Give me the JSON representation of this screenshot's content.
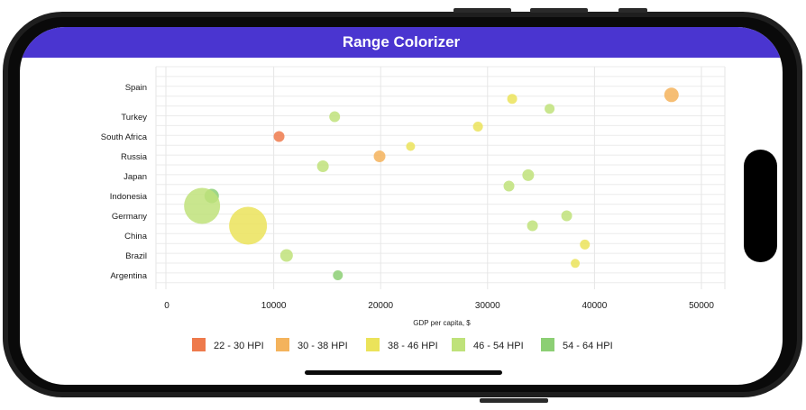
{
  "app": {
    "title": "Range Colorizer"
  },
  "chart_data": {
    "type": "scatter",
    "title": "",
    "xlabel": "GDP per capita, $",
    "ylabel": "",
    "xlim": [
      -1000,
      52000
    ],
    "x_ticks": [
      0,
      10000,
      20000,
      30000,
      40000,
      50000
    ],
    "x_tick_labels": [
      "0",
      "10000",
      "20000",
      "30000",
      "40000",
      "50000"
    ],
    "categories": [
      "Argentina",
      "Brazil",
      "China",
      "Germany",
      "Indonesia",
      "Japan",
      "Russia",
      "South Africa",
      "Turkey",
      "Spain"
    ],
    "grid": true,
    "legend_position": "bottom",
    "legend": [
      {
        "label": "22 - 30 HPI",
        "color": "#ee7a4c"
      },
      {
        "label": "30 - 38 HPI",
        "color": "#f4b35c"
      },
      {
        "label": "38 - 46 HPI",
        "color": "#ebe35a"
      },
      {
        "label": "46 - 54 HPI",
        "color": "#bfe27a"
      },
      {
        "label": "54 - 64 HPI",
        "color": "#8ccf74"
      }
    ],
    "points": [
      {
        "x": 47200,
        "y": 9.1,
        "r": 8,
        "range": 1
      },
      {
        "x": 32300,
        "y": 8.9,
        "r": 5.5,
        "range": 2
      },
      {
        "x": 35800,
        "y": 8.4,
        "r": 5.5,
        "range": 3
      },
      {
        "x": 15700,
        "y": 8.0,
        "r": 6,
        "range": 3
      },
      {
        "x": 29100,
        "y": 7.5,
        "r": 5.5,
        "range": 2
      },
      {
        "x": 10500,
        "y": 7.0,
        "r": 6,
        "range": 0
      },
      {
        "x": 22800,
        "y": 6.5,
        "r": 5,
        "range": 2
      },
      {
        "x": 19900,
        "y": 6.0,
        "r": 6.5,
        "range": 1
      },
      {
        "x": 14600,
        "y": 5.5,
        "r": 6.5,
        "range": 3
      },
      {
        "x": 33800,
        "y": 5.05,
        "r": 6.5,
        "range": 3
      },
      {
        "x": 32000,
        "y": 4.5,
        "r": 6,
        "range": 3
      },
      {
        "x": 4200,
        "y": 4.0,
        "r": 8,
        "range": 4
      },
      {
        "x": 3300,
        "y": 3.5,
        "r": 20,
        "range": 3
      },
      {
        "x": 37400,
        "y": 3.0,
        "r": 6,
        "range": 3
      },
      {
        "x": 7600,
        "y": 2.5,
        "r": 21,
        "range": 2
      },
      {
        "x": 34200,
        "y": 2.5,
        "r": 6,
        "range": 3
      },
      {
        "x": 39100,
        "y": 1.55,
        "r": 5.5,
        "range": 2
      },
      {
        "x": 11200,
        "y": 1.0,
        "r": 7,
        "range": 3
      },
      {
        "x": 38200,
        "y": 0.6,
        "r": 5,
        "range": 2
      },
      {
        "x": 16000,
        "y": 0.0,
        "r": 5.5,
        "range": 4
      }
    ]
  }
}
